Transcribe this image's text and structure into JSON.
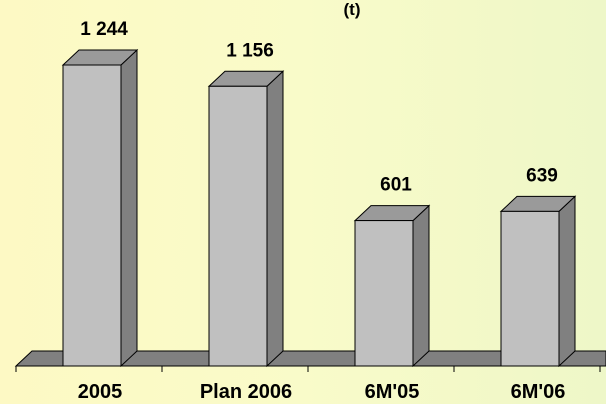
{
  "chart_data": {
    "type": "bar",
    "unit_label": "(t)",
    "categories": [
      "2005",
      "Plan 2006",
      "6M'05",
      "6M'06"
    ],
    "values": [
      1244,
      1156,
      601,
      639
    ],
    "data_labels": [
      "1 244",
      "1 156",
      "601",
      "639"
    ],
    "ylim": [
      0,
      1400
    ],
    "grid": false,
    "legend": "none",
    "colors": {
      "bar_front": "#c0c0c0",
      "bar_side": "#808080",
      "bar_top": "#9a9a9a",
      "floor": "#808080",
      "outline": "#000000"
    }
  }
}
